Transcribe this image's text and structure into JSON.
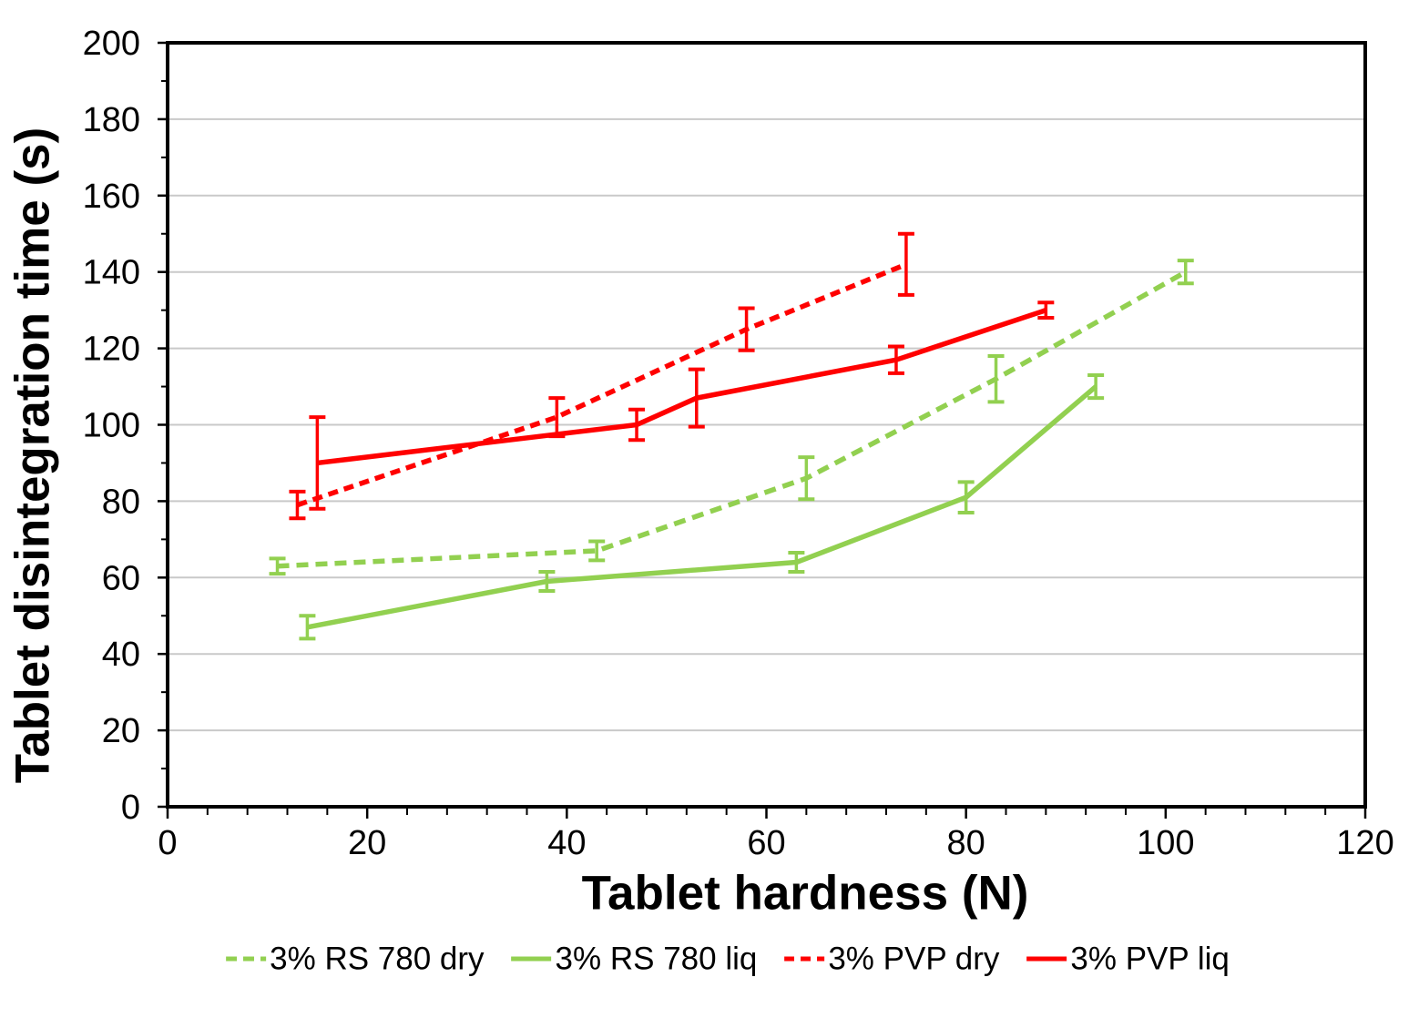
{
  "chart_data": {
    "type": "line",
    "title": "",
    "xlabel": "Tablet hardness (N)",
    "ylabel": "Tablet disintegration time (s)",
    "xlim": [
      0,
      120
    ],
    "ylim": [
      0,
      200
    ],
    "x_major_unit": 20,
    "x_minor_unit": 4,
    "y_major_unit": 20,
    "y_minor_unit": 10,
    "x_tick_labels": [
      "0",
      "20",
      "40",
      "60",
      "80",
      "100",
      "120"
    ],
    "y_tick_labels": [
      "0",
      "20",
      "40",
      "60",
      "80",
      "100",
      "120",
      "140",
      "160",
      "180",
      "200"
    ],
    "grid": "horizontal-major-only",
    "legend_position": "bottom-center",
    "axis_color": "#000000",
    "gridline_color": "#C9C9C9",
    "series": [
      {
        "name": "3% RS 780 dry",
        "color": "#92D050",
        "line_style": "dashed",
        "x": [
          11,
          43,
          64,
          83,
          102
        ],
        "y": [
          63,
          67,
          86,
          112,
          140
        ],
        "y_err": [
          2,
          2.5,
          5.5,
          6,
          3
        ]
      },
      {
        "name": "3% RS 780 liq",
        "color": "#92D050",
        "line_style": "solid",
        "x": [
          14,
          38,
          63,
          80,
          93
        ],
        "y": [
          47,
          59,
          64,
          81,
          110
        ],
        "y_err": [
          3,
          2.5,
          2.5,
          4,
          3
        ]
      },
      {
        "name": "3% PVP dry",
        "color": "#FF0000",
        "line_style": "dashed",
        "x": [
          13,
          39,
          58,
          74
        ],
        "y": [
          79,
          102,
          125,
          142
        ],
        "y_err": [
          3.5,
          5,
          5.5,
          8
        ]
      },
      {
        "name": "3% PVP liq",
        "color": "#FF0000",
        "line_style": "solid",
        "x": [
          15,
          47,
          53,
          73,
          88
        ],
        "y": [
          90,
          100,
          107,
          117,
          130
        ],
        "y_err": [
          12,
          4,
          7.5,
          3.5,
          2
        ]
      }
    ]
  }
}
